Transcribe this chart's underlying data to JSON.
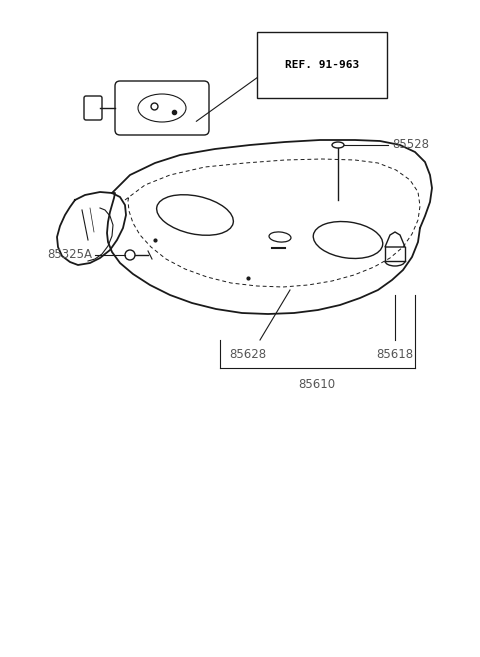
{
  "bg_color": "#ffffff",
  "line_color": "#1a1a1a",
  "label_color": "#555555",
  "ref_box_color": "#000000",
  "labels": {
    "ref": "REF. 91-963",
    "85528": "85528",
    "85325A": "85325A",
    "85628": "85628",
    "85618": "85618",
    "85610": "85610"
  },
  "figsize": [
    4.8,
    6.57
  ],
  "dpi": 100
}
